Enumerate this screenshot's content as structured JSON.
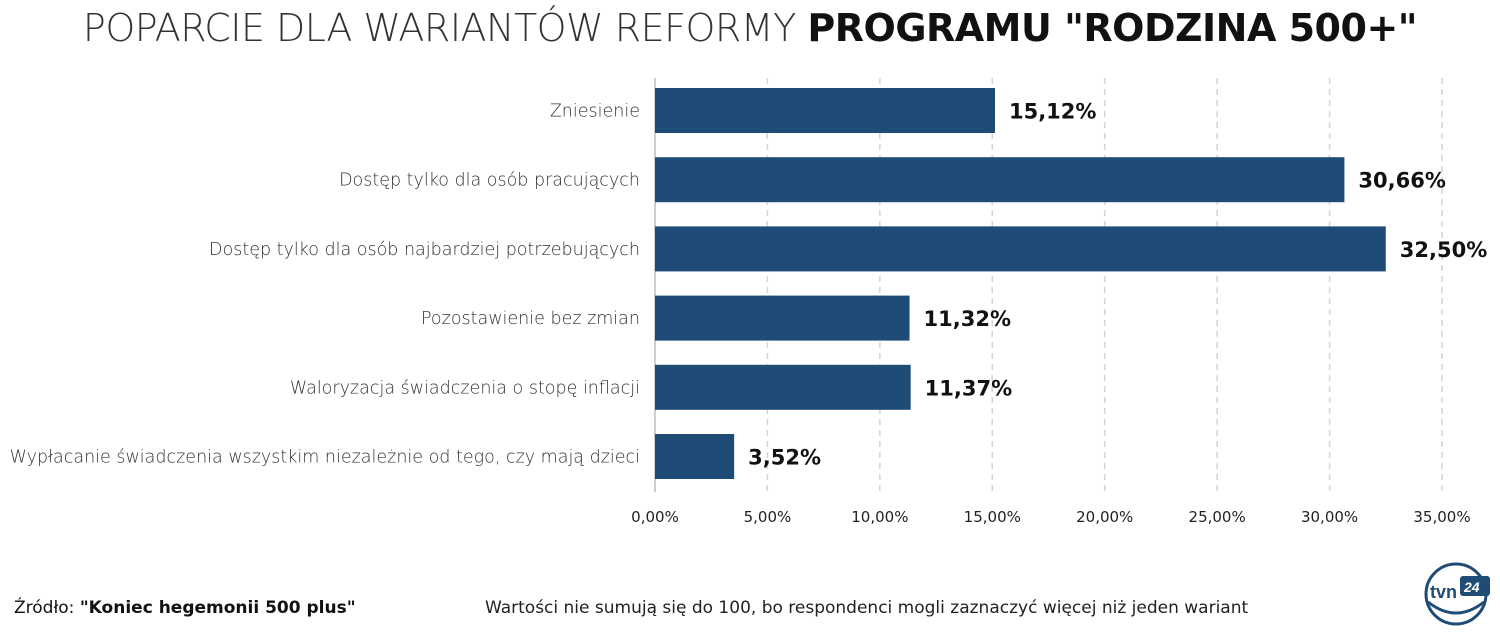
{
  "title": {
    "light": "POPARCIE DLA WARIANTÓW REFORMY",
    "bold": "PROGRAMU \"RODZINA 500+\""
  },
  "chart_data": {
    "type": "bar",
    "orientation": "horizontal",
    "title": "POPARCIE DLA WARIANTÓW REFORMY PROGRAMU \"RODZINA 500+\"",
    "categories": [
      "Zniesienie",
      "Dostęp tylko dla osób pracujących",
      "Dostęp tylko dla osób najbardziej potrzebujących",
      "Pozostawienie bez zmian",
      "Waloryzacja świadczenia o stopę inflacji",
      "Wypłacanie świadczenia wszystkim niezależnie od tego, czy mają dzieci"
    ],
    "values": [
      15.12,
      30.66,
      32.5,
      11.32,
      11.37,
      3.52
    ],
    "data_labels": [
      "15,12%",
      "30,66%",
      "32,50%",
      "11,32%",
      "11,37%",
      "3,52%"
    ],
    "xlim": [
      0,
      35
    ],
    "xticks": [
      0,
      5,
      10,
      15,
      20,
      25,
      30,
      35
    ],
    "xtick_labels": [
      "0,00%",
      "5,00%",
      "10,00%",
      "15,00%",
      "20,00%",
      "25,00%",
      "30,00%",
      "35,00%"
    ],
    "grid": "vertical-dashed",
    "bar_color": "#1f4b77"
  },
  "footer": {
    "source_prefix": "Źródło: ",
    "source_name": "\"Koniec hegemonii 500 plus\"",
    "note": "Wartości nie sumują się do 100, bo respondenci mogli zaznaczyć więcej niż jeden wariant"
  },
  "logo": {
    "icon": "tvn24-logo-icon",
    "text": "tvn24"
  }
}
